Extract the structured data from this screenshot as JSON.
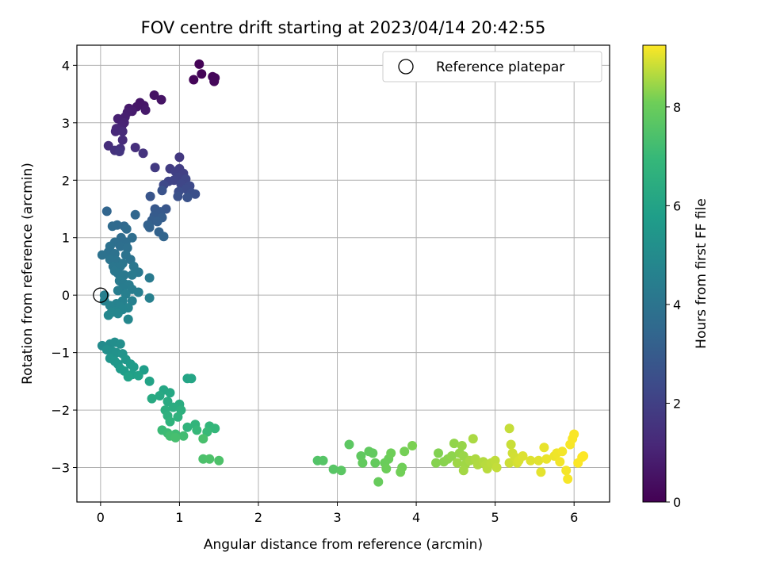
{
  "chart_data": {
    "type": "scatter",
    "title": "FOV centre drift starting at 2023/04/14 20:42:55",
    "xlabel": "Angular distance from reference (arcmin)",
    "ylabel": "Rotation from reference (arcmin)",
    "xlim": [
      -0.3,
      6.45
    ],
    "ylim": [
      -3.6,
      4.35
    ],
    "xticks": [
      0,
      1,
      2,
      3,
      4,
      5,
      6
    ],
    "yticks": [
      -3,
      -2,
      -1,
      0,
      1,
      2,
      3,
      4
    ],
    "grid": true,
    "legend": {
      "placement": "top-right",
      "label": "Reference platepar"
    },
    "reference_point": {
      "x": 0,
      "y": 0
    },
    "colorbar": {
      "label": "Hours from first FF file",
      "range": [
        0,
        9.25
      ],
      "ticks": [
        0,
        2,
        4,
        6,
        8
      ],
      "colormap": "viridis"
    },
    "points": [
      [
        1.25,
        4.02,
        0.05
      ],
      [
        1.28,
        3.85,
        0.1
      ],
      [
        1.18,
        3.75,
        0.12
      ],
      [
        1.42,
        3.8,
        0.15
      ],
      [
        1.45,
        3.78,
        0.18
      ],
      [
        1.44,
        3.72,
        0.2
      ],
      [
        0.68,
        3.48,
        0.5
      ],
      [
        0.77,
        3.4,
        0.55
      ],
      [
        0.5,
        3.35,
        0.6
      ],
      [
        0.55,
        3.3,
        0.62
      ],
      [
        0.46,
        3.28,
        0.65
      ],
      [
        0.57,
        3.22,
        0.7
      ],
      [
        0.36,
        3.25,
        0.75
      ],
      [
        0.4,
        3.2,
        0.8
      ],
      [
        0.34,
        3.18,
        0.85
      ],
      [
        0.31,
        3.1,
        0.9
      ],
      [
        0.22,
        3.07,
        0.95
      ],
      [
        0.3,
        3.0,
        1.0
      ],
      [
        0.27,
        2.95,
        1.05
      ],
      [
        0.24,
        2.9,
        1.1
      ],
      [
        0.2,
        2.9,
        1.15
      ],
      [
        0.19,
        2.85,
        1.2
      ],
      [
        0.28,
        2.85,
        1.25
      ],
      [
        0.28,
        2.7,
        1.3
      ],
      [
        0.1,
        2.6,
        1.35
      ],
      [
        0.44,
        2.57,
        1.4
      ],
      [
        0.25,
        2.55,
        1.45
      ],
      [
        0.18,
        2.52,
        1.5
      ],
      [
        0.54,
        2.47,
        1.55
      ],
      [
        0.24,
        2.5,
        1.6
      ],
      [
        1.0,
        2.4,
        1.7
      ],
      [
        0.69,
        2.22,
        1.8
      ],
      [
        0.88,
        2.2,
        1.85
      ],
      [
        1.0,
        2.2,
        1.9
      ],
      [
        0.95,
        2.15,
        1.95
      ],
      [
        1.05,
        2.12,
        2.0
      ],
      [
        0.98,
        2.05,
        2.05
      ],
      [
        0.93,
        2.0,
        2.1
      ],
      [
        0.86,
        1.98,
        2.15
      ],
      [
        1.08,
        2.02,
        2.2
      ],
      [
        1.02,
        1.93,
        2.25
      ],
      [
        0.8,
        1.92,
        2.3
      ],
      [
        1.13,
        1.9,
        2.35
      ],
      [
        1.08,
        1.85,
        2.4
      ],
      [
        0.99,
        1.8,
        2.45
      ],
      [
        1.15,
        1.78,
        2.5
      ],
      [
        1.2,
        1.76,
        2.55
      ],
      [
        0.98,
        1.72,
        2.6
      ],
      [
        1.1,
        1.7,
        2.65
      ],
      [
        0.78,
        1.82,
        2.7
      ],
      [
        0.63,
        1.72,
        2.75
      ],
      [
        0.83,
        1.5,
        2.8
      ],
      [
        0.69,
        1.5,
        2.85
      ],
      [
        0.76,
        1.45,
        2.9
      ],
      [
        0.7,
        1.45,
        2.95
      ],
      [
        0.68,
        1.38,
        3.0
      ],
      [
        0.78,
        1.35,
        3.05
      ],
      [
        0.65,
        1.3,
        3.1
      ],
      [
        0.72,
        1.28,
        3.15
      ],
      [
        0.6,
        1.22,
        3.2
      ],
      [
        0.62,
        1.18,
        3.25
      ],
      [
        0.74,
        1.1,
        3.3
      ],
      [
        0.8,
        1.02,
        3.35
      ],
      [
        0.08,
        1.46,
        3.4
      ],
      [
        0.44,
        1.4,
        3.45
      ],
      [
        0.3,
        1.2,
        3.5
      ],
      [
        0.21,
        1.22,
        3.55
      ],
      [
        0.15,
        1.2,
        3.6
      ],
      [
        0.33,
        1.15,
        3.65
      ],
      [
        0.26,
        1.0,
        3.7
      ],
      [
        0.4,
        1.0,
        3.72
      ],
      [
        0.32,
        0.92,
        3.75
      ],
      [
        0.18,
        0.92,
        3.78
      ],
      [
        0.25,
        0.85,
        3.8
      ],
      [
        0.34,
        0.82,
        3.82
      ],
      [
        0.12,
        0.85,
        3.85
      ],
      [
        0.1,
        0.75,
        3.88
      ],
      [
        0.02,
        0.7,
        3.9
      ],
      [
        0.18,
        0.72,
        3.92
      ],
      [
        0.32,
        0.7,
        3.95
      ],
      [
        0.38,
        0.62,
        3.97
      ],
      [
        0.12,
        0.62,
        4.0
      ],
      [
        0.2,
        0.6,
        4.02
      ],
      [
        0.28,
        0.55,
        4.05
      ],
      [
        0.16,
        0.5,
        4.08
      ],
      [
        0.25,
        0.5,
        4.1
      ],
      [
        0.42,
        0.5,
        4.12
      ],
      [
        0.18,
        0.42,
        4.15
      ],
      [
        0.48,
        0.4,
        4.18
      ],
      [
        0.22,
        0.38,
        4.2
      ],
      [
        0.3,
        0.35,
        4.22
      ],
      [
        0.4,
        0.35,
        4.25
      ],
      [
        0.62,
        0.3,
        4.28
      ],
      [
        0.24,
        0.25,
        4.3
      ],
      [
        0.3,
        0.2,
        4.32
      ],
      [
        0.36,
        0.18,
        4.35
      ],
      [
        0.28,
        0.12,
        4.38
      ],
      [
        0.4,
        0.1,
        4.4
      ],
      [
        0.22,
        0.08,
        4.42
      ],
      [
        0.48,
        0.05,
        4.45
      ],
      [
        0.32,
        0.02,
        4.48
      ],
      [
        0.05,
        0.0,
        4.5
      ],
      [
        0.62,
        -0.05,
        4.52
      ],
      [
        0.4,
        -0.1,
        4.55
      ],
      [
        0.28,
        -0.1,
        4.58
      ],
      [
        0.05,
        -0.1,
        4.6
      ],
      [
        0.2,
        -0.15,
        4.62
      ],
      [
        0.12,
        -0.18,
        4.65
      ],
      [
        0.25,
        -0.2,
        4.68
      ],
      [
        0.35,
        -0.22,
        4.7
      ],
      [
        0.28,
        -0.25,
        4.72
      ],
      [
        0.18,
        -0.28,
        4.75
      ],
      [
        0.14,
        -0.3,
        4.78
      ],
      [
        0.22,
        -0.32,
        4.8
      ],
      [
        0.1,
        -0.35,
        4.82
      ],
      [
        0.35,
        -0.42,
        4.85
      ],
      [
        0.02,
        -0.88,
        5.0
      ],
      [
        0.12,
        -0.85,
        5.05
      ],
      [
        0.18,
        -0.82,
        5.1
      ],
      [
        0.25,
        -0.85,
        5.15
      ],
      [
        0.08,
        -0.95,
        5.2
      ],
      [
        0.15,
        -0.98,
        5.25
      ],
      [
        0.2,
        -1.0,
        5.3
      ],
      [
        0.28,
        -1.02,
        5.35
      ],
      [
        0.12,
        -1.1,
        5.4
      ],
      [
        0.18,
        -1.15,
        5.45
      ],
      [
        0.32,
        -1.12,
        5.5
      ],
      [
        0.22,
        -1.2,
        5.55
      ],
      [
        0.38,
        -1.2,
        5.6
      ],
      [
        0.25,
        -1.28,
        5.65
      ],
      [
        0.42,
        -1.25,
        5.7
      ],
      [
        0.3,
        -1.32,
        5.75
      ],
      [
        0.55,
        -1.3,
        5.8
      ],
      [
        0.4,
        -1.38,
        5.85
      ],
      [
        0.48,
        -1.4,
        5.9
      ],
      [
        0.35,
        -1.42,
        5.95
      ],
      [
        0.62,
        -1.5,
        6.0
      ],
      [
        1.1,
        -1.45,
        6.05
      ],
      [
        1.15,
        -1.45,
        6.1
      ],
      [
        0.8,
        -1.65,
        6.15
      ],
      [
        0.88,
        -1.7,
        6.2
      ],
      [
        0.75,
        -1.75,
        6.25
      ],
      [
        0.65,
        -1.8,
        6.3
      ],
      [
        0.85,
        -1.85,
        6.35
      ],
      [
        1.0,
        -1.9,
        6.4
      ],
      [
        0.92,
        -1.95,
        6.45
      ],
      [
        0.82,
        -2.0,
        6.5
      ],
      [
        1.02,
        -2.0,
        6.55
      ],
      [
        0.85,
        -2.1,
        6.6
      ],
      [
        0.98,
        -2.12,
        6.65
      ],
      [
        0.88,
        -2.2,
        6.7
      ],
      [
        1.1,
        -2.3,
        6.75
      ],
      [
        1.2,
        -2.25,
        6.8
      ],
      [
        1.38,
        -2.28,
        6.85
      ],
      [
        1.45,
        -2.32,
        6.9
      ],
      [
        1.22,
        -2.35,
        6.95
      ],
      [
        1.35,
        -2.38,
        7.0
      ],
      [
        0.78,
        -2.35,
        7.05
      ],
      [
        0.85,
        -2.4,
        7.1
      ],
      [
        0.95,
        -2.42,
        7.15
      ],
      [
        1.05,
        -2.45,
        7.2
      ],
      [
        0.88,
        -2.45,
        7.25
      ],
      [
        0.95,
        -2.48,
        7.3
      ],
      [
        1.3,
        -2.5,
        7.35
      ],
      [
        1.3,
        -2.85,
        7.4
      ],
      [
        1.5,
        -2.88,
        7.45
      ],
      [
        1.38,
        -2.85,
        7.45
      ],
      [
        2.75,
        -2.88,
        7.55
      ],
      [
        2.82,
        -2.88,
        7.6
      ],
      [
        2.95,
        -3.03,
        7.65
      ],
      [
        3.05,
        -3.05,
        7.7
      ],
      [
        3.15,
        -2.6,
        7.75
      ],
      [
        3.3,
        -2.8,
        7.8
      ],
      [
        3.4,
        -2.72,
        7.82
      ],
      [
        3.45,
        -2.75,
        7.85
      ],
      [
        3.32,
        -2.92,
        7.88
      ],
      [
        3.48,
        -2.92,
        7.9
      ],
      [
        3.52,
        -3.25,
        7.95
      ],
      [
        3.6,
        -2.92,
        8.0
      ],
      [
        3.65,
        -2.85,
        8.02
      ],
      [
        3.62,
        -3.02,
        8.05
      ],
      [
        3.68,
        -2.75,
        8.08
      ],
      [
        3.82,
        -3.0,
        8.1
      ],
      [
        3.8,
        -3.08,
        8.12
      ],
      [
        3.85,
        -2.72,
        8.15
      ],
      [
        3.95,
        -2.62,
        8.2
      ],
      [
        4.28,
        -2.75,
        8.25
      ],
      [
        4.25,
        -2.92,
        8.28
      ],
      [
        4.35,
        -2.9,
        8.3
      ],
      [
        4.4,
        -2.85,
        8.32
      ],
      [
        4.45,
        -2.8,
        8.35
      ],
      [
        4.48,
        -2.58,
        8.38
      ],
      [
        4.55,
        -2.75,
        8.4
      ],
      [
        4.58,
        -2.62,
        8.42
      ],
      [
        4.6,
        -2.8,
        8.45
      ],
      [
        4.52,
        -2.92,
        8.48
      ],
      [
        4.62,
        -2.95,
        8.5
      ],
      [
        4.6,
        -3.05,
        8.52
      ],
      [
        4.68,
        -2.88,
        8.55
      ],
      [
        4.72,
        -2.5,
        8.58
      ],
      [
        4.75,
        -2.85,
        8.6
      ],
      [
        4.78,
        -2.95,
        8.62
      ],
      [
        4.85,
        -2.9,
        8.65
      ],
      [
        4.88,
        -2.95,
        8.68
      ],
      [
        4.9,
        -3.02,
        8.7
      ],
      [
        4.95,
        -2.92,
        8.72
      ],
      [
        5.0,
        -2.88,
        8.75
      ],
      [
        5.02,
        -3.0,
        8.78
      ],
      [
        5.18,
        -2.32,
        8.8
      ],
      [
        5.2,
        -2.6,
        8.82
      ],
      [
        5.18,
        -2.92,
        8.85
      ],
      [
        5.22,
        -2.75,
        8.88
      ],
      [
        5.25,
        -2.82,
        8.9
      ],
      [
        5.28,
        -2.92,
        8.92
      ],
      [
        5.3,
        -2.88,
        8.95
      ],
      [
        5.35,
        -2.8,
        8.98
      ],
      [
        5.45,
        -2.88,
        9.0
      ],
      [
        5.55,
        -2.88,
        9.02
      ],
      [
        5.58,
        -3.08,
        9.05
      ],
      [
        5.62,
        -2.65,
        9.08
      ],
      [
        5.65,
        -2.85,
        9.1
      ],
      [
        5.75,
        -2.8,
        9.12
      ],
      [
        5.78,
        -2.75,
        9.14
      ],
      [
        5.82,
        -2.9,
        9.16
      ],
      [
        5.85,
        -2.72,
        9.17
      ],
      [
        5.9,
        -3.05,
        9.18
      ],
      [
        5.92,
        -3.2,
        9.19
      ],
      [
        5.95,
        -2.6,
        9.2
      ],
      [
        5.98,
        -2.5,
        9.21
      ],
      [
        6.0,
        -2.42,
        9.22
      ],
      [
        6.05,
        -2.92,
        9.23
      ],
      [
        6.1,
        -2.82,
        9.24
      ],
      [
        6.12,
        -2.8,
        9.25
      ]
    ]
  }
}
